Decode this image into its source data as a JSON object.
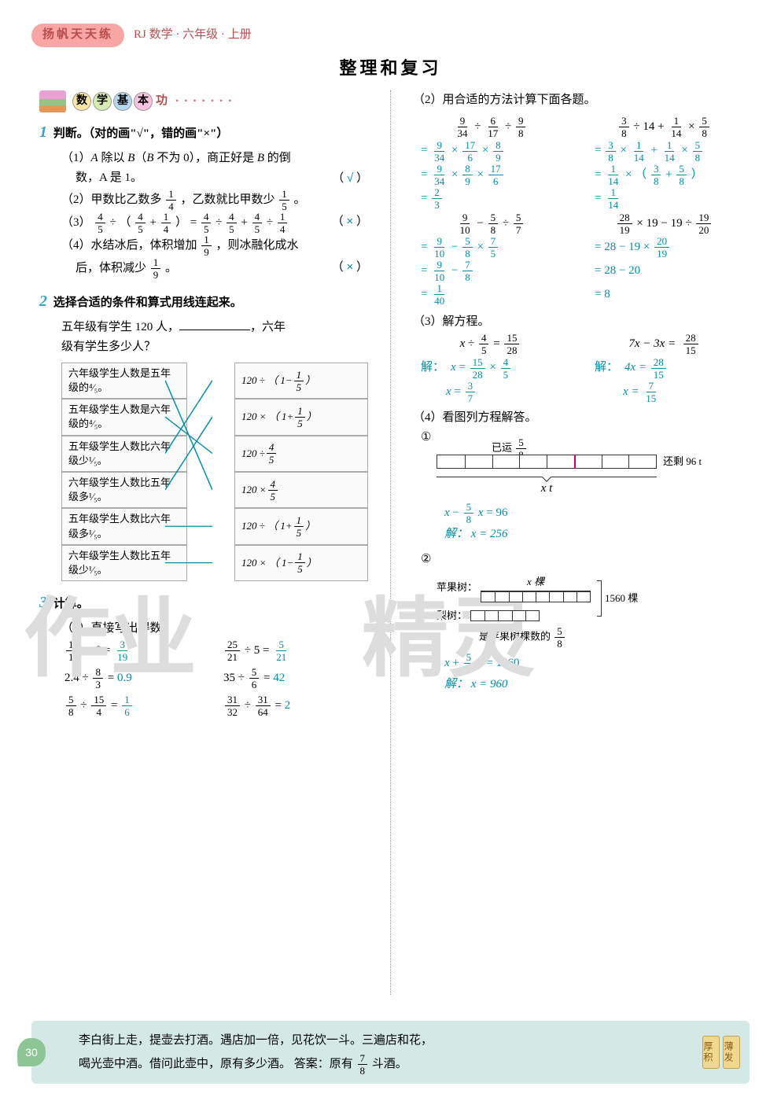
{
  "header": {
    "series": "扬帆天天练",
    "subject": "RJ 数学 · 六年级 · 上册"
  },
  "title": "整理和复习",
  "section_label": {
    "c1": "数",
    "c2": "学",
    "c3": "基",
    "c4": "本",
    "tail": "功"
  },
  "q1": {
    "num": "1",
    "head": "判断。（对的画\"√\"，错的画\"×\"）",
    "items": [
      {
        "pre": "（1）",
        "text_a": "A 除以 B（B 不为 0），商正好是 B 的倒",
        "text_b": "数，A 是 1。",
        "mark": "√"
      },
      {
        "pre": "（2）",
        "text": "甲数比乙数多",
        "f1n": "1",
        "f1d": "4",
        "mid": "，乙数就比甲数少",
        "f2n": "1",
        "f2d": "5",
        "tail": "。"
      },
      {
        "pre": "（3）"
      },
      {
        "pre": "（4）",
        "text_a": "水结冰后，体积增加",
        "fn": "1",
        "fd": "9",
        "text_b": "，则冰融化成水",
        "text_c": "后，体积减少",
        "f2n": "1",
        "f2d": "9",
        "tail": "。",
        "mark": "×"
      }
    ]
  },
  "q2": {
    "num": "2",
    "head": "选择合适的条件和算式用线连起来。",
    "stem_a": "五年级有学生 120 人，",
    "stem_b": "，六年",
    "stem_c": "级有学生多少人？",
    "left": [
      "六年级学生人数是五年级的⁴⁄₅。",
      "五年级学生人数是六年级的⁴⁄₅。",
      "五年级学生人数比六年级少¹⁄₅。",
      "六年级学生人数比五年级多¹⁄₅。",
      "五年级学生人数比六年级多¹⁄₅。",
      "六年级学生人数比五年级少¹⁄₅。"
    ],
    "right_raw": [
      {
        "pre": "120 ÷ （ 1−",
        "n": "1",
        "d": "5",
        "post": " ）"
      },
      {
        "pre": "120 × （ 1+",
        "n": "1",
        "d": "5",
        "post": " ）"
      },
      {
        "pre": "120 ÷ ",
        "n": "4",
        "d": "5",
        "post": ""
      },
      {
        "pre": "120 × ",
        "n": "4",
        "d": "5",
        "post": ""
      },
      {
        "pre": "120 ÷ （ 1+",
        "n": "1",
        "d": "5",
        "post": " ）"
      },
      {
        "pre": "120 × （ 1−",
        "n": "1",
        "d": "5",
        "post": " ）"
      }
    ],
    "lines": [
      [
        0,
        3
      ],
      [
        1,
        2
      ],
      [
        2,
        0
      ],
      [
        3,
        1
      ],
      [
        4,
        4
      ],
      [
        5,
        5
      ]
    ]
  },
  "q3": {
    "num": "3",
    "head": "计算。",
    "sub1": "（1）直接写出得数。",
    "grid": [
      {
        "l": {
          "n": "18",
          "d": "19"
        },
        "op": " ÷ 6 = ",
        "a": {
          "n": "3",
          "d": "19"
        }
      },
      {
        "l": {
          "n": "25",
          "d": "21"
        },
        "op": " ÷ 5 = ",
        "a": {
          "n": "5",
          "d": "21"
        }
      },
      {
        "plain": "2.4 ÷ ",
        "l": {
          "n": "8",
          "d": "3"
        },
        "eq": " = ",
        "ans": "0.9"
      },
      {
        "plain": "35 ÷ ",
        "l": {
          "n": "5",
          "d": "6"
        },
        "eq": " = ",
        "ans": "42"
      },
      {
        "l": {
          "n": "5",
          "d": "8"
        },
        "op": " ÷ ",
        "r": {
          "n": "15",
          "d": "4"
        },
        "eq": " = ",
        "a": {
          "n": "1",
          "d": "6"
        }
      },
      {
        "l": {
          "n": "31",
          "d": "32"
        },
        "op": " ÷ ",
        "r": {
          "n": "31",
          "d": "64"
        },
        "eq": " = ",
        "ans": "2"
      }
    ]
  },
  "right": {
    "sub2": "（2）用合适的方法计算下面各题。",
    "pA": {
      "q_n1": "9",
      "q_d1": "34",
      "q_n2": "6",
      "q_d2": "17",
      "q_n3": "9",
      "q_d3": "8",
      "s1": [
        "9",
        "34",
        "17",
        "6",
        "8",
        "9"
      ],
      "s2": [
        "9",
        "34",
        "8",
        "9",
        "17",
        "6"
      ],
      "s3n": "2",
      "s3d": "3"
    },
    "pB": {
      "q_n1": "3",
      "q_d1": "8",
      "q_mid": " ÷ 14 + ",
      "q_n2": "1",
      "q_d2": "14",
      "q_n3": "5",
      "q_d3": "8",
      "s1": [
        "3",
        "8",
        "1",
        "14",
        "1",
        "14",
        "5",
        "8"
      ],
      "s2_pre": [
        "1",
        "14"
      ],
      "s2_a": [
        "3",
        "8"
      ],
      "s2_b": [
        "5",
        "8"
      ],
      "s3n": "1",
      "s3d": "14"
    },
    "pC": {
      "q_n1": "9",
      "q_d1": "10",
      "q_n2": "5",
      "q_d2": "8",
      "q_n3": "5",
      "q_d3": "7",
      "s1": [
        "9",
        "10",
        "5",
        "8",
        "7",
        "5"
      ],
      "s2": [
        "9",
        "10",
        "7",
        "8"
      ],
      "s3n": "1",
      "s3d": "40"
    },
    "pD": {
      "q_n1": "28",
      "q_d1": "19",
      "q_mid": " × 19 − 19 ÷ ",
      "q_n2": "19",
      "q_d2": "20",
      "s1_pre": "= 28 − 19 × ",
      "s1n": "20",
      "s1d": "19",
      "s2": "= 28 − 20",
      "s3": "= 8"
    },
    "sub3": "（3）解方程。",
    "eqA": {
      "q_pre": "x ÷ ",
      "qn": "4",
      "qd": "5",
      "q_post": " = ",
      "rn": "15",
      "rd": "28",
      "l1_pre": "x = ",
      "l1a": [
        "15",
        "28"
      ],
      "l1b": [
        "4",
        "5"
      ],
      "l2_pre": "x = ",
      "l2n": "3",
      "l2d": "7"
    },
    "eqB": {
      "q": "7x − 3x = ",
      "rn": "28",
      "rd": "15",
      "l1": "4x = ",
      "l1n": "28",
      "l1d": "15",
      "l2": "x = ",
      "l2n": "7",
      "l2d": "15"
    },
    "sub4": "（4）看图列方程解答。",
    "d1": {
      "idx": "①",
      "top_label_pre": "已运",
      "top_n": "5",
      "top_d": "8",
      "right_label": "还剩 96 t",
      "under": "x t",
      "eq_pre": "x − ",
      "eqn": "5",
      "eqd": "8",
      "eq_post": " x = 96",
      "sol_label": "解：",
      "sol": "x = 256"
    },
    "d2": {
      "idx": "②",
      "row1_label": "苹果树：",
      "row1_var": "x 棵",
      "row2_label": "梨树：",
      "row2_cap_pre": "是苹果树棵数的",
      "row2_n": "5",
      "row2_d": "8",
      "brace_right": "1560 棵",
      "eq_pre": "x + ",
      "eqn": "5",
      "eqd": "8",
      "eq_post": " x = 1560",
      "sol_label": "解：",
      "sol": "x = 960"
    }
  },
  "footer": {
    "line1": "李白街上走，提壶去打酒。遇店加一倍，见花饮一斗。三遍店和花，",
    "line2_a": "喝光壶中酒。借问此壶中，原有多少酒。    答案：原有",
    "fn": "7",
    "fd": "8",
    "line2_b": "斗酒。",
    "page": "30",
    "scroll1": "厚积",
    "scroll2": "薄发"
  },
  "colors": {
    "answer": "#008ea9",
    "qnum": "#3ca0c9",
    "badge_bg": "#f8a5a5",
    "badge_fg": "#b94d4d",
    "footer_bg": "#d4e8e6",
    "pagenum_bg": "#8ec596"
  }
}
